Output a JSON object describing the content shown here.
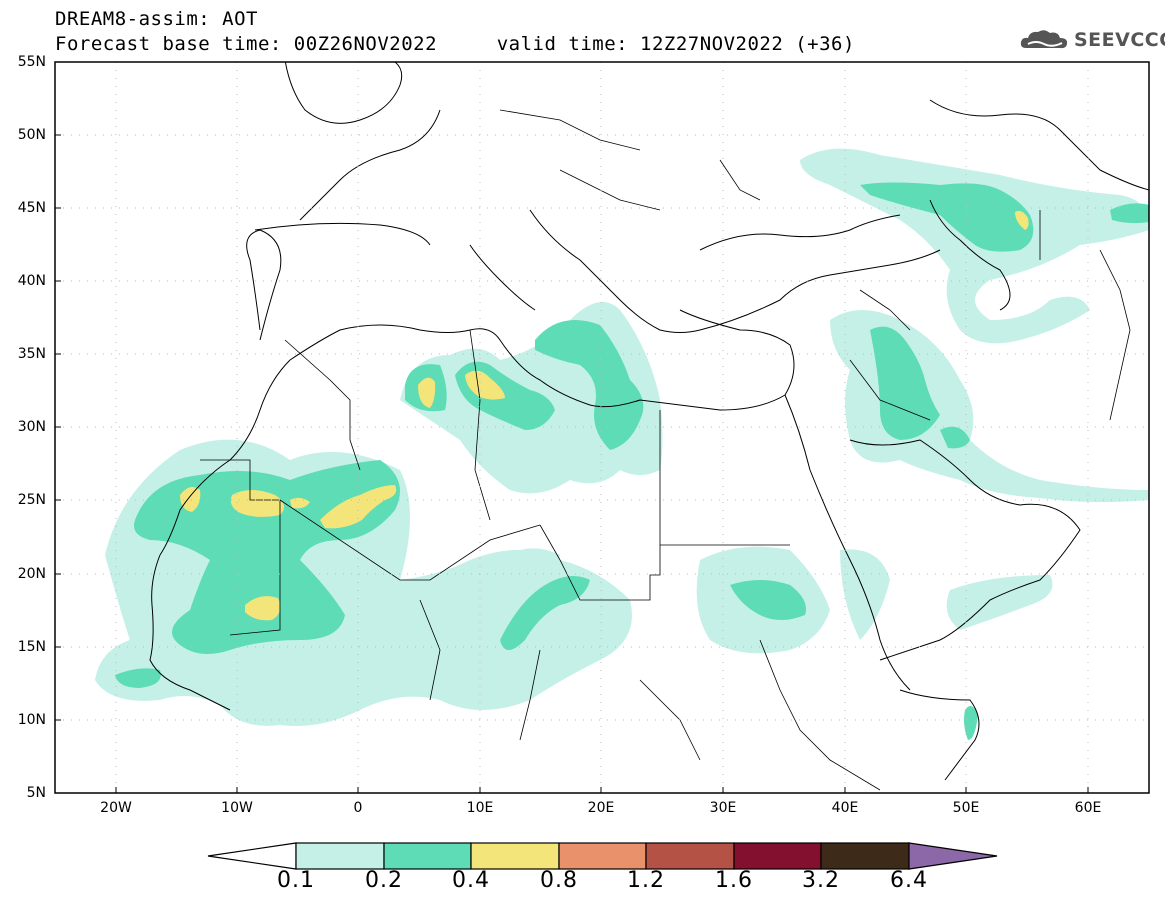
{
  "title": {
    "line1": "DREAM8-assim: AOT",
    "line2": "Forecast base time: 00Z26NOV2022     valid time: 12Z27NOV2022 (+36)"
  },
  "logo": {
    "text": "SEEVCCC",
    "icon": "cloud-logo-icon",
    "color": "#555555"
  },
  "map": {
    "lat_labels": [
      "55N",
      "50N",
      "45N",
      "40N",
      "35N",
      "30N",
      "25N",
      "20N",
      "15N",
      "10N",
      "5N"
    ],
    "lon_labels": [
      "20W",
      "10W",
      "0",
      "10E",
      "20E",
      "30E",
      "40E",
      "50E",
      "60E"
    ],
    "lon_range": [
      -25,
      65
    ],
    "lat_range": [
      5,
      55
    ]
  },
  "colorbar": {
    "labels": [
      "0.1",
      "0.2",
      "0.4",
      "0.8",
      "1.2",
      "1.6",
      "3.2",
      "6.4"
    ],
    "colors": [
      "#c4f0e8",
      "#5ddcb5",
      "#f3e57a",
      "#e8916a",
      "#b35245",
      "#82102e",
      "#3e2a18",
      "#8c68a8"
    ]
  },
  "colors": {
    "level1": "#c4f0e8",
    "level2": "#5ddcb5",
    "level3": "#f3e57a"
  }
}
